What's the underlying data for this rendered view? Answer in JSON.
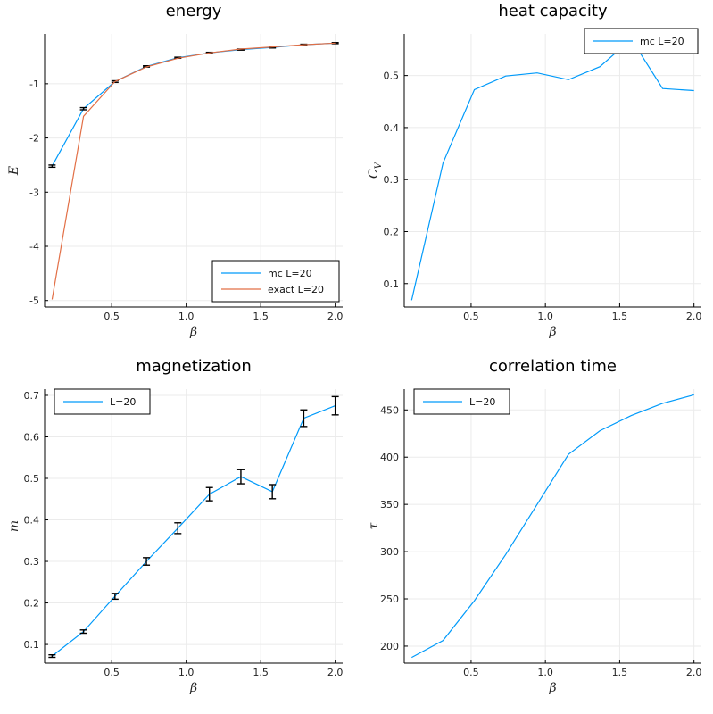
{
  "colors": {
    "series1": "#009AFA",
    "series2": "#E26F46",
    "errorbar": "#000000",
    "grid": "#ebebeb",
    "axis": "#000000"
  },
  "chart_data": [
    {
      "type": "line",
      "title": "energy",
      "xlabel": "β",
      "ylabel": "E",
      "xlim": [
        0.05,
        2.05
      ],
      "ylim": [
        -5.12,
        -0.08
      ],
      "xticks": [
        0.5,
        1.0,
        1.5,
        2.0
      ],
      "xtick_labels": [
        "0.5",
        "1.0",
        "1.5",
        "2.0"
      ],
      "yticks": [
        -5,
        -4,
        -3,
        -2,
        -1
      ],
      "ytick_labels": [
        "-5",
        "-4",
        "-3",
        "-2",
        "-1"
      ],
      "grid": true,
      "legend_position": "bottom-right",
      "series": [
        {
          "name": "mc L=20",
          "color": "#009AFA",
          "errorbars": true,
          "x": [
            0.1,
            0.311,
            0.522,
            0.733,
            0.944,
            1.156,
            1.367,
            1.578,
            1.789,
            2.0
          ],
          "y": [
            -2.52,
            -1.46,
            -0.96,
            -0.68,
            -0.52,
            -0.43,
            -0.37,
            -0.33,
            -0.28,
            -0.25
          ],
          "err": [
            0.02,
            0.02,
            0.015,
            0.012,
            0.01,
            0.01,
            0.01,
            0.01,
            0.01,
            0.01
          ]
        },
        {
          "name": "exact L=20",
          "color": "#E26F46",
          "errorbars": false,
          "x": [
            0.1,
            0.311,
            0.522,
            0.733,
            0.944,
            1.156,
            1.367,
            1.578,
            1.789,
            2.0
          ],
          "y": [
            -4.98,
            -1.6,
            -0.96,
            -0.69,
            -0.53,
            -0.43,
            -0.36,
            -0.32,
            -0.28,
            -0.25
          ]
        }
      ]
    },
    {
      "type": "line",
      "title": "heat capacity",
      "xlabel": "β",
      "ylabel": "C_V",
      "xlim": [
        0.05,
        2.05
      ],
      "ylim": [
        0.055,
        0.58
      ],
      "xticks": [
        0.5,
        1.0,
        1.5,
        2.0
      ],
      "xtick_labels": [
        "0.5",
        "1.0",
        "1.5",
        "2.0"
      ],
      "yticks": [
        0.1,
        0.2,
        0.3,
        0.4,
        0.5
      ],
      "ytick_labels": [
        "0.1",
        "0.2",
        "0.3",
        "0.4",
        "0.5"
      ],
      "grid": true,
      "legend_position": "top-right",
      "series": [
        {
          "name": "mc L=20",
          "color": "#009AFA",
          "errorbars": false,
          "x": [
            0.1,
            0.311,
            0.522,
            0.733,
            0.944,
            1.156,
            1.367,
            1.578,
            1.789,
            2.0
          ],
          "y": [
            0.068,
            0.332,
            0.473,
            0.499,
            0.505,
            0.492,
            0.517,
            0.57,
            0.475,
            0.471
          ]
        }
      ]
    },
    {
      "type": "line",
      "title": "magnetization",
      "xlabel": "β",
      "ylabel": "m",
      "xlim": [
        0.05,
        2.05
      ],
      "ylim": [
        0.055,
        0.715
      ],
      "xticks": [
        0.5,
        1.0,
        1.5,
        2.0
      ],
      "xtick_labels": [
        "0.5",
        "1.0",
        "1.5",
        "2.0"
      ],
      "yticks": [
        0.1,
        0.2,
        0.3,
        0.4,
        0.5,
        0.6,
        0.7
      ],
      "ytick_labels": [
        "0.1",
        "0.2",
        "0.3",
        "0.4",
        "0.5",
        "0.6",
        "0.7"
      ],
      "grid": true,
      "legend_position": "top-left",
      "series": [
        {
          "name": "L=20",
          "color": "#009AFA",
          "errorbars": true,
          "x": [
            0.1,
            0.311,
            0.522,
            0.733,
            0.944,
            1.156,
            1.367,
            1.578,
            1.789,
            2.0
          ],
          "y": [
            0.072,
            0.131,
            0.216,
            0.3,
            0.38,
            0.462,
            0.504,
            0.468,
            0.645,
            0.675
          ],
          "err": [
            0.003,
            0.004,
            0.007,
            0.009,
            0.013,
            0.016,
            0.017,
            0.017,
            0.02,
            0.022
          ]
        }
      ]
    },
    {
      "type": "line",
      "title": "correlation time",
      "xlabel": "β",
      "ylabel": "τ",
      "xlim": [
        0.05,
        2.05
      ],
      "ylim": [
        182,
        472
      ],
      "xticks": [
        0.5,
        1.0,
        1.5,
        2.0
      ],
      "xtick_labels": [
        "0.5",
        "1.0",
        "1.5",
        "2.0"
      ],
      "yticks": [
        200,
        250,
        300,
        350,
        400,
        450
      ],
      "ytick_labels": [
        "200",
        "250",
        "300",
        "350",
        "400",
        "450"
      ],
      "grid": true,
      "legend_position": "top-left",
      "series": [
        {
          "name": "L=20",
          "color": "#009AFA",
          "errorbars": false,
          "x": [
            0.1,
            0.311,
            0.522,
            0.733,
            0.944,
            1.156,
            1.367,
            1.578,
            1.789,
            2.0
          ],
          "y": [
            188,
            206,
            248,
            297,
            350,
            403,
            428,
            444,
            457,
            466
          ]
        }
      ]
    }
  ]
}
